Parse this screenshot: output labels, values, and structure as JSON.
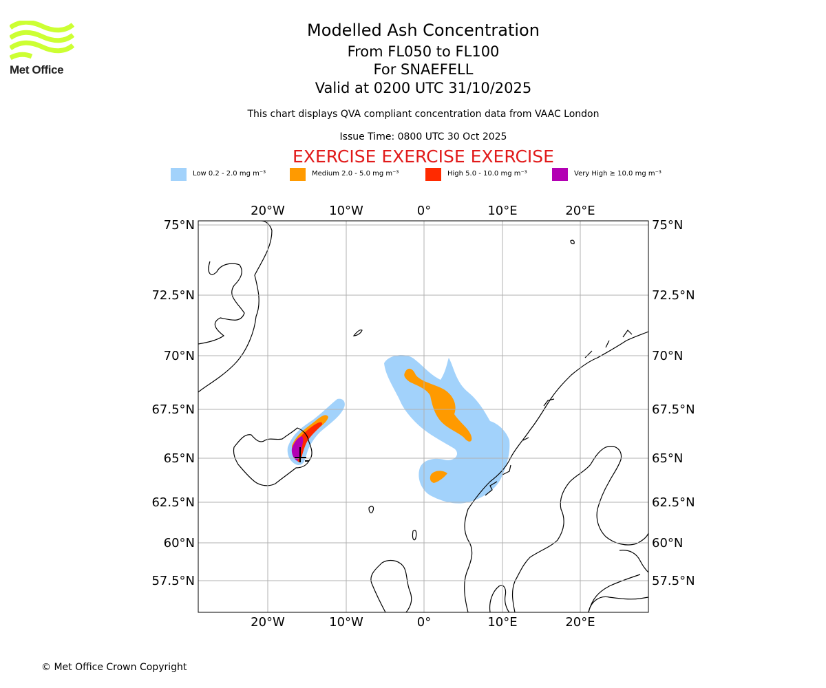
{
  "logo": {
    "text": "Met Office",
    "color": "#ccff33"
  },
  "header": {
    "title": "Modelled Ash Concentration",
    "levels": "From FL050 to FL100",
    "volcano": "For SNAEFELL",
    "valid": "Valid at 0200 UTC 31/10/2025",
    "note": "This chart displays QVA compliant concentration data from VAAC London",
    "issue_time": "Issue Time: 0800 UTC 30 Oct 2025",
    "exercise": "EXERCISE EXERCISE EXERCISE",
    "exercise_color": "#e11a1a"
  },
  "legend": [
    {
      "label": "Low 0.2 - 2.0 mg m⁻³",
      "color": "#a2d2fb"
    },
    {
      "label": "Medium 2.0 - 5.0 mg m⁻³",
      "color": "#ff9a00"
    },
    {
      "label": "High 5.0 - 10.0 mg m⁻³",
      "color": "#ff2a00"
    },
    {
      "label": "Very High  ≥  10.0 mg m⁻³",
      "color": "#b300b3"
    }
  ],
  "map": {
    "lon_ticks": [
      "20°W",
      "10°W",
      "0°",
      "10°E",
      "20°E"
    ],
    "lat_ticks": [
      "75°N",
      "72.5°N",
      "70°N",
      "67.5°N",
      "65°N",
      "62.5°N",
      "60°N",
      "57.5°N"
    ],
    "gridline_color": "#b0b0b0"
  },
  "footer": {
    "copyright": "© Met Office Crown Copyright"
  }
}
